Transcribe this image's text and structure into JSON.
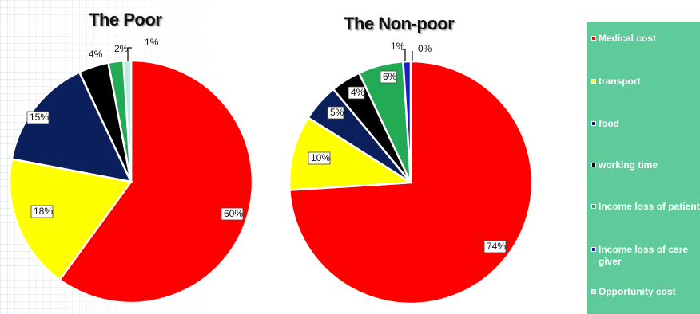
{
  "colors": {
    "Medical cost": "#ff0000",
    "transport": "#ffff00",
    "food": "#0a1f5c",
    "working time": "#000000",
    "Income loss of patient": "#22aa55",
    "Income loss of care giver": "#1e1ec8",
    "Opportunity cost": "#b9ecd9"
  },
  "legend": {
    "items": [
      "Medical cost",
      "transport",
      "food",
      "working time",
      "Income loss of patient",
      "Income loss of care giver",
      "Opportunity cost"
    ]
  },
  "chart_data": [
    {
      "type": "pie",
      "title": "The Poor",
      "categories": [
        "Medical cost",
        "transport",
        "food",
        "working time",
        "Income loss of patient",
        "Income loss of care giver",
        "Opportunity cost"
      ],
      "values": [
        60,
        18,
        15,
        4,
        2,
        0,
        1
      ],
      "labels": [
        "60%",
        "18%",
        "15%",
        "4%",
        "2%",
        "",
        "1%"
      ]
    },
    {
      "type": "pie",
      "title": "The Non-poor",
      "categories": [
        "Medical cost",
        "transport",
        "food",
        "working time",
        "Income loss of patient",
        "Income loss of care giver",
        "Opportunity cost"
      ],
      "values": [
        74,
        10,
        5,
        4,
        6,
        1,
        0
      ],
      "labels": [
        "74%",
        "10%",
        "5%",
        "4%",
        "6%",
        "1%",
        "0%"
      ]
    }
  ]
}
